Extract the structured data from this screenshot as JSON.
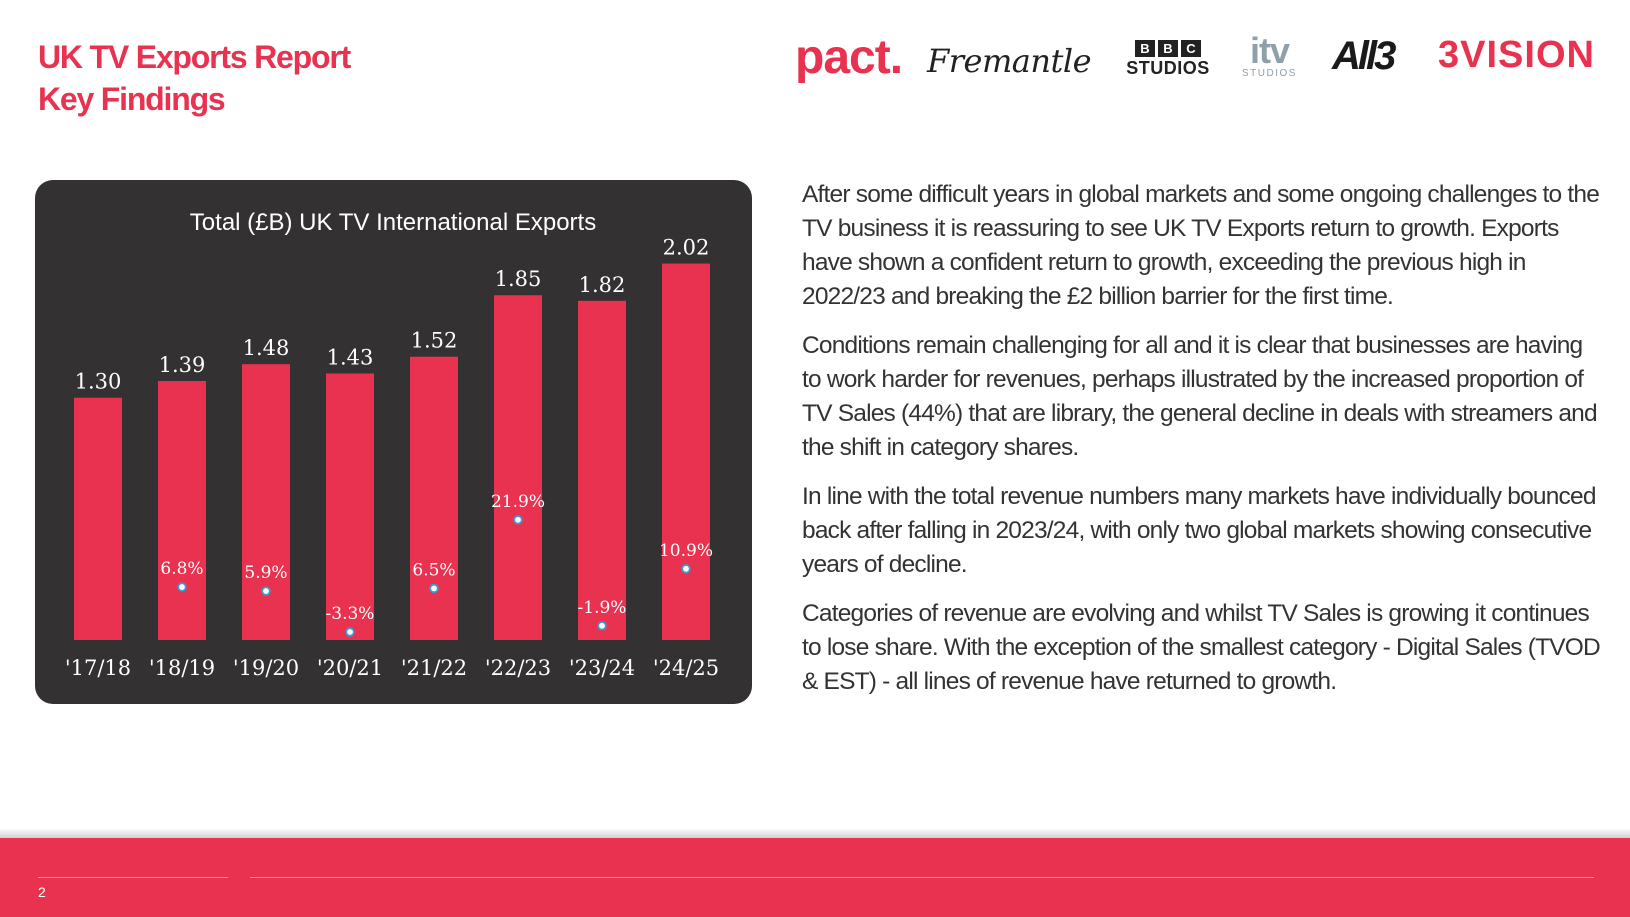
{
  "header": {
    "title_line1": "UK TV Exports Report",
    "title_line2": "Key Findings"
  },
  "logos": {
    "pact": "pact.",
    "fremantle": "Fremantle",
    "bbc_blocks": [
      "B",
      "B",
      "C"
    ],
    "bbc_studios": "STUDIOS",
    "itv_main": "itv",
    "itv_sub": "STUDIOS",
    "all3": "All3",
    "threevision": "3VISION"
  },
  "chart_data": {
    "type": "bar",
    "title": "Total (£B) UK TV International Exports",
    "categories": [
      "'17/18",
      "'18/19",
      "'19/20",
      "'20/21",
      "'21/22",
      "'22/23",
      "'23/24",
      "'24/25"
    ],
    "series": [
      {
        "name": "",
        "values": [
          1.3,
          1.39,
          1.48,
          1.43,
          1.52,
          1.85,
          1.82,
          2.02
        ]
      }
    ],
    "value_labels": [
      "1.30",
      "1.39",
      "1.48",
      "1.43",
      "1.52",
      "1.85",
      "1.82",
      "2.02"
    ],
    "growth_labels": [
      "",
      "6.8%",
      "5.9%",
      "-3.3%",
      "6.5%",
      "21.9%",
      "-1.9%",
      "10.9%"
    ],
    "growth_values": [
      null,
      6.8,
      5.9,
      -3.3,
      6.5,
      21.9,
      -1.9,
      10.9
    ],
    "ylim": [
      0,
      2.2
    ],
    "xlabel": "",
    "ylabel": "",
    "grid": false,
    "colors": {
      "bar": "#e8324f",
      "background": "#333132",
      "marker": "#ffffff",
      "marker_border": "#3a9bd5"
    }
  },
  "body": {
    "paragraphs": [
      "After some difficult years in global markets and some ongoing challenges to the TV business it is reassuring to see UK TV Exports return to growth. Exports have shown a confident return to growth, exceeding the previous high in 2022/23 and breaking the £2 billion barrier for the first time.",
      "Conditions remain challenging for all and it is clear that businesses are having to work harder for revenues, perhaps illustrated by the increased proportion of TV Sales (44%) that are library, the general decline in deals with streamers and the shift in category shares.",
      "In line with the total revenue numbers many markets have individually bounced back after falling in 2023/24, with only two global markets showing consecutive years of decline.",
      "Categories of revenue are evolving and whilst TV Sales is growing it continues to lose share.  With the exception of the smallest category - Digital Sales (TVOD & EST) - all lines of revenue have returned to growth."
    ]
  },
  "footer": {
    "page_number": "2"
  },
  "colors": {
    "accent": "#e8324f",
    "text": "#333333",
    "chart_panel": "#333132"
  }
}
